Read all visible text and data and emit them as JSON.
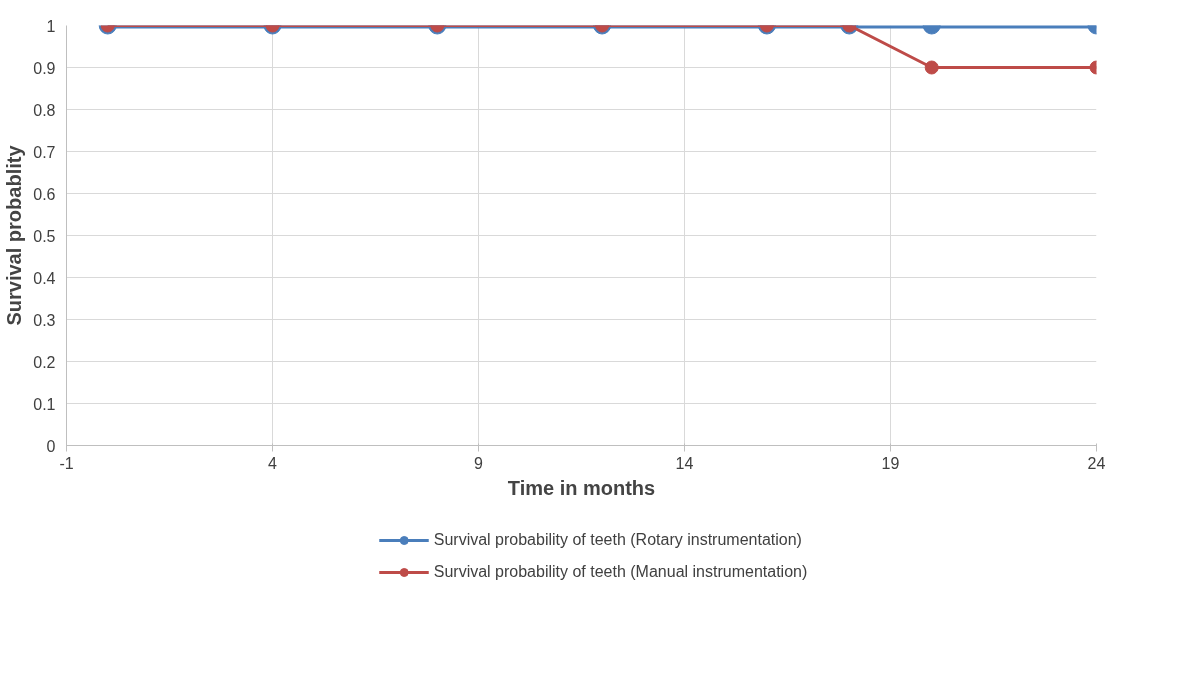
{
  "chart_data": {
    "type": "line",
    "xlabel": "Time in months",
    "ylabel": "Survival probablity",
    "x": [
      0,
      4,
      8,
      12,
      16,
      18,
      20,
      24
    ],
    "series": [
      {
        "name": "Survival probability of teeth (Rotary instrumentation)",
        "color": "#4a7ebb",
        "values": [
          1,
          1,
          1,
          1,
          1,
          1,
          1,
          1
        ]
      },
      {
        "name": "Survival probability of teeth (Manual instrumentation)",
        "color": "#be4b48",
        "values": [
          1,
          1,
          1,
          1,
          1,
          1,
          0.9,
          0.9
        ]
      }
    ],
    "xlim": [
      -1,
      24
    ],
    "xticks": [
      -1,
      4,
      9,
      14,
      19,
      24
    ],
    "ylim": [
      0,
      1
    ],
    "yticks": [
      0,
      0.1,
      0.2,
      0.3,
      0.4,
      0.5,
      0.6,
      0.7,
      0.8,
      0.9,
      1
    ],
    "grid": true,
    "legend": "bottom",
    "marker": "circle",
    "line_style": "solid"
  }
}
